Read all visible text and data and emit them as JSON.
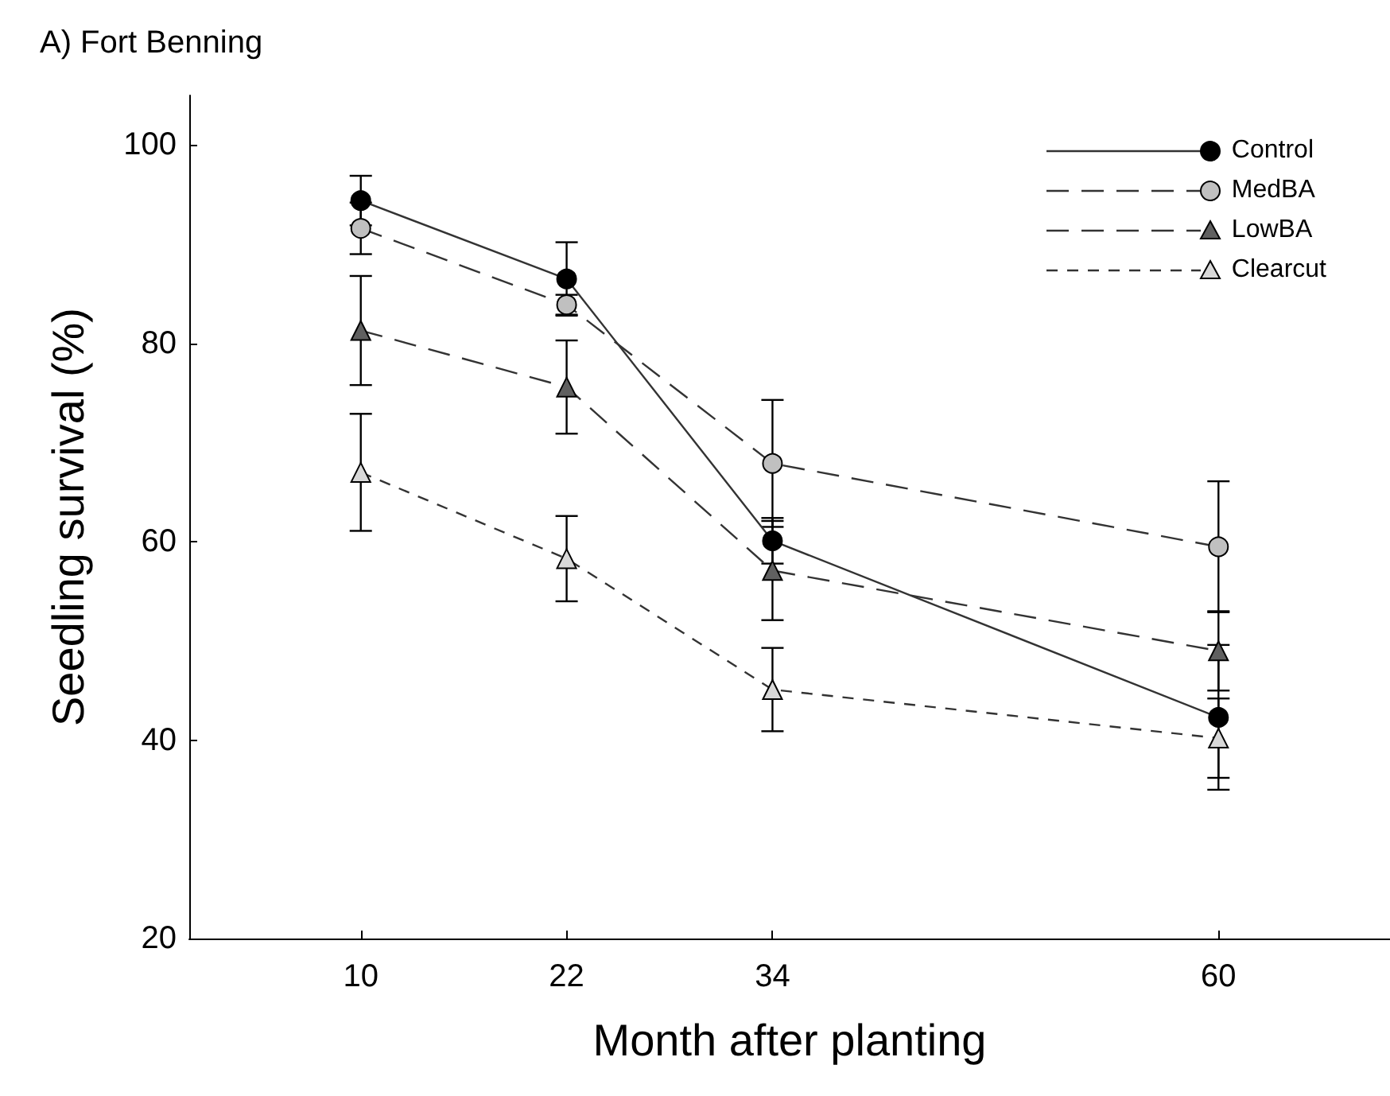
{
  "chart_data": {
    "type": "line",
    "title": "A) Fort Benning",
    "xlabel": "Month after planting",
    "ylabel": "Seedling survival (%)",
    "x": [
      10,
      22,
      34,
      60
    ],
    "xlim": [
      0,
      70
    ],
    "xticks": [
      10,
      22,
      34,
      60
    ],
    "ylim": [
      20,
      105
    ],
    "yticks": [
      20,
      40,
      60,
      80,
      100
    ],
    "grid": false,
    "legend": "top right",
    "series": [
      {
        "name": "Control",
        "color": "#000000",
        "marker": "circle",
        "line_style": "solid",
        "values": [
          94.4,
          86.5,
          60.1,
          42.3
        ],
        "errors": [
          2.5,
          3.7,
          2.3,
          7.3
        ]
      },
      {
        "name": "MedBA",
        "color": "#c0c0c0",
        "marker": "circle",
        "line_style": "dashed",
        "values": [
          91.6,
          83.9,
          67.9,
          59.5
        ],
        "errors": [
          2.6,
          1.0,
          6.4,
          6.6
        ]
      },
      {
        "name": "LowBA",
        "color": "#606060",
        "marker": "triangle",
        "line_style": "dashed",
        "values": [
          81.3,
          75.6,
          57.1,
          49.0
        ],
        "errors": [
          5.5,
          4.7,
          5.0,
          4.0
        ]
      },
      {
        "name": "Clearcut",
        "color": "#d8d8d8",
        "marker": "triangle",
        "line_style": "dotted",
        "values": [
          67.0,
          58.3,
          45.1,
          40.2
        ],
        "errors": [
          5.9,
          4.3,
          4.2,
          4.0
        ]
      }
    ]
  }
}
